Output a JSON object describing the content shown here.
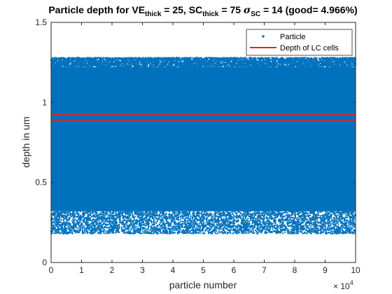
{
  "chart_data": {
    "type": "scatter",
    "title": {
      "prefix": "Particle depth for VE",
      "sub1": "thick",
      "mid1": " = 25, SC",
      "sub2": "thick",
      "mid2": " = 75 ",
      "sigma": "σ",
      "sub3": "SC",
      "suffix": " = 14 (good= 4.966%)"
    },
    "xlabel": "particle number",
    "ylabel": "depth in um",
    "x_exponent_base": "× 10",
    "x_exponent_power": "4",
    "xlim": [
      0,
      10
    ],
    "ylim": [
      0,
      1.5
    ],
    "x_ticks": [
      "0",
      "1",
      "2",
      "3",
      "4",
      "5",
      "6",
      "7",
      "8",
      "9",
      "10"
    ],
    "y_ticks": [
      "0",
      "0.5",
      "1",
      "1.5"
    ],
    "grid": false,
    "legend_position": "top-right",
    "series": [
      {
        "name": "Particle",
        "kind": "scatter",
        "color": "#0072BD",
        "x_range": [
          0,
          100000
        ],
        "y_range": [
          0.18,
          1.28
        ],
        "dense_y_range": [
          0.32,
          1.22
        ]
      },
      {
        "name": "Depth of LC cells",
        "kind": "hlines",
        "color": "#D62728",
        "y_values": [
          0.885,
          0.925
        ]
      }
    ]
  }
}
